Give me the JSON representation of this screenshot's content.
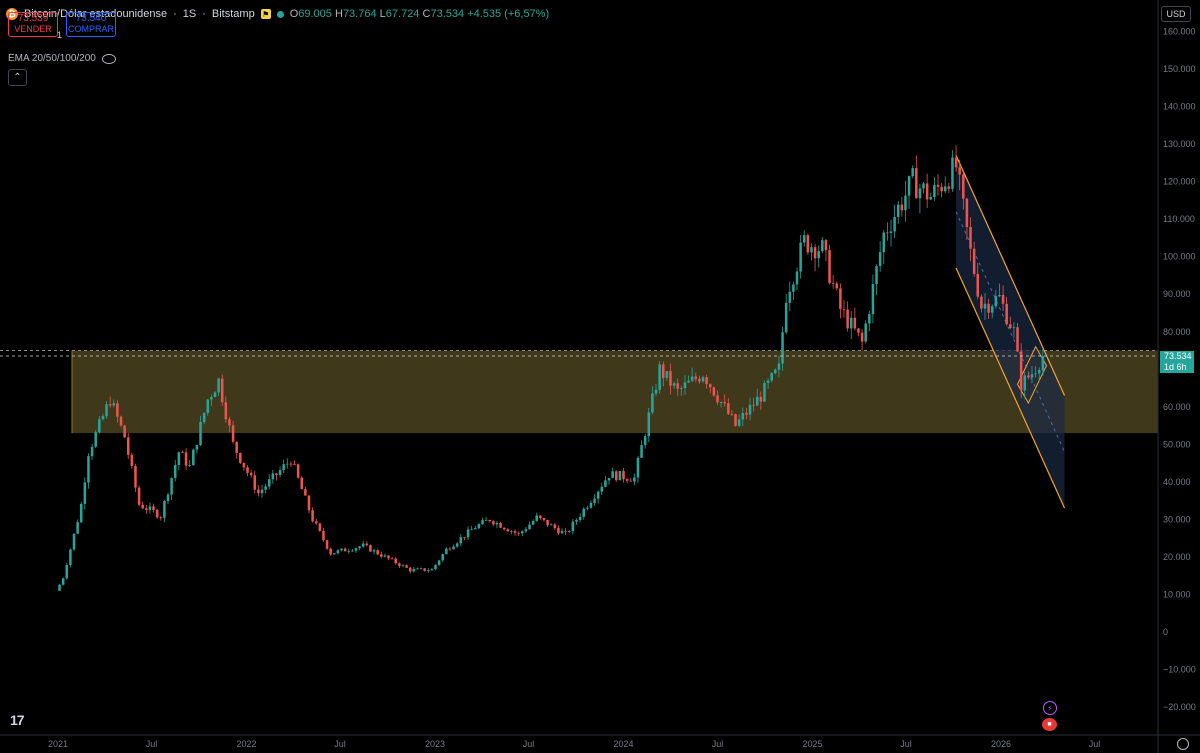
{
  "header": {
    "symbol_title": "Bitcoin/Dólar estadounidense",
    "interval": "1S",
    "exchange": "Bitstamp",
    "ohlc": {
      "open_label": "O",
      "open": "69.005",
      "high_label": "H",
      "high": "73.764",
      "low_label": "L",
      "low": "67.724",
      "close_label": "C",
      "close": "73.534",
      "change": "+4.535 (+6,57%)"
    }
  },
  "trade": {
    "sell_price": "73.539",
    "sell_label": "VENDER",
    "spread": "1",
    "buy_price": "73.540",
    "buy_label": "COMPRAR"
  },
  "indicator": {
    "label": "EMA 20/50/100/200"
  },
  "currency": "USD",
  "last_price": {
    "value": "73.534",
    "countdown": "1d 6h"
  },
  "icons": [
    "bitcoin-icon",
    "flag-icon",
    "eye-hidden-icon",
    "chevron-up-icon",
    "tradingview-logo-icon",
    "lightning-icon",
    "us-flag-icon",
    "settings-gear-icon"
  ],
  "colors": {
    "up": "#26a69a",
    "down": "#ef5350",
    "zone": "#4a4220",
    "channel": "#f5a623",
    "channel_fill": "#1a2a45",
    "background": "#000000"
  },
  "chart_data": {
    "type": "candlestick",
    "title": "Bitcoin/Dólar estadounidense · 1S · Bitstamp",
    "x_tick_labels": [
      "2021",
      "Jul",
      "2022",
      "Jul",
      "2023",
      "Jul",
      "2024",
      "Jul",
      "2025",
      "Jul",
      "2026",
      "Jul"
    ],
    "y_tick_labels": [
      "160.000",
      "150.000",
      "140.000",
      "130.000",
      "120.000",
      "110.000",
      "100.000",
      "90.000",
      "80.000",
      "70.000",
      "60.000",
      "50.000",
      "40.000",
      "30.000",
      "20.000",
      "10.000",
      "0",
      "−10.000",
      "−20.000"
    ],
    "y_range": [
      -25000,
      165000
    ],
    "price_path": [
      [
        "2020-12-28",
        11000
      ],
      [
        "2021-01-10",
        14000
      ],
      [
        "2021-02-14",
        33000
      ],
      [
        "2021-03-01",
        48000
      ],
      [
        "2021-04-12",
        62000
      ],
      [
        "2021-05-10",
        52000
      ],
      [
        "2021-06-07",
        34000
      ],
      [
        "2021-07-19",
        31000
      ],
      [
        "2021-08-23",
        48000
      ],
      [
        "2021-09-13",
        44000
      ],
      [
        "2021-10-18",
        62000
      ],
      [
        "2021-11-08",
        67000
      ],
      [
        "2021-12-06",
        50000
      ],
      [
        "2022-01-24",
        37000
      ],
      [
        "2022-03-28",
        46000
      ],
      [
        "2022-05-09",
        30000
      ],
      [
        "2022-06-13",
        21000
      ],
      [
        "2022-08-15",
        23000
      ],
      [
        "2022-10-03",
        19500
      ],
      [
        "2022-11-14",
        16500
      ],
      [
        "2022-12-26",
        16600
      ],
      [
        "2023-01-23",
        22000
      ],
      [
        "2023-03-20",
        28000
      ],
      [
        "2023-04-17",
        30000
      ],
      [
        "2023-06-12",
        26000
      ],
      [
        "2023-07-17",
        30500
      ],
      [
        "2023-09-11",
        26000
      ],
      [
        "2023-10-23",
        34000
      ],
      [
        "2023-12-04",
        42000
      ],
      [
        "2024-01-22",
        41000
      ],
      [
        "2024-03-11",
        70000
      ],
      [
        "2024-04-15",
        64000
      ],
      [
        "2024-06-03",
        69000
      ],
      [
        "2024-08-05",
        55000
      ],
      [
        "2024-09-23",
        63000
      ],
      [
        "2024-10-28",
        70000
      ],
      [
        "2024-11-11",
        90000
      ],
      [
        "2024-12-16",
        104000
      ],
      [
        "2025-01-20",
        102000
      ],
      [
        "2025-02-24",
        86000
      ],
      [
        "2025-04-07",
        77000
      ],
      [
        "2025-05-19",
        106000
      ],
      [
        "2025-07-14",
        120000
      ],
      [
        "2025-08-18",
        116000
      ],
      [
        "2025-10-06",
        124000
      ],
      [
        "2025-11-03",
        101000
      ],
      [
        "2025-11-24",
        87000
      ],
      [
        "2025-12-29",
        89000
      ],
      [
        "2026-01-26",
        80000
      ],
      [
        "2026-02-09",
        66000
      ],
      [
        "2026-03-02",
        69000
      ],
      [
        "2026-03-23",
        73534
      ]
    ],
    "support_zone": [
      53000,
      75000
    ],
    "last_price": 73534,
    "channel": {
      "upper": [
        [
          "2025-10-06",
          127000
        ],
        [
          "2026-05-04",
          63000
        ]
      ],
      "lower": [
        [
          "2025-10-06",
          97000
        ],
        [
          "2026-05-04",
          33000
        ]
      ]
    },
    "grid": false,
    "legend": "none"
  }
}
